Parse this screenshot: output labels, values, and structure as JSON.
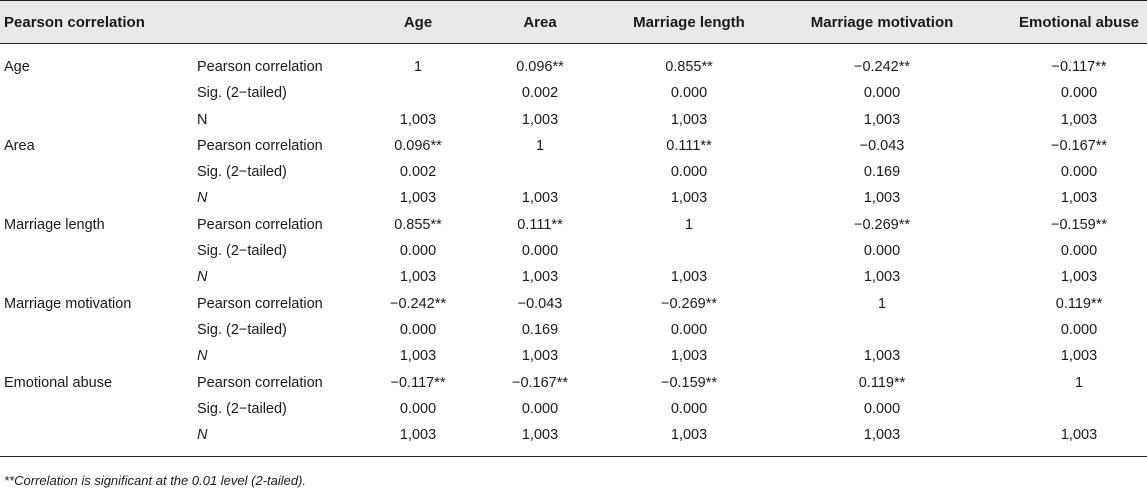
{
  "table": {
    "columns": [
      "Pearson correlation",
      "Age",
      "Area",
      "Marriage length",
      "Marriage motivation",
      "Emotional abuse"
    ],
    "blocks": [
      {
        "label": "Age",
        "rows": [
          {
            "stat": "Pearson correlation",
            "italic": false,
            "values": [
              "1",
              "0.096**",
              "0.855**",
              "−0.242**",
              "−0.117**"
            ]
          },
          {
            "stat": "Sig. (2−tailed)",
            "italic": false,
            "values": [
              "",
              "0.002",
              "0.000",
              "0.000",
              "0.000"
            ]
          },
          {
            "stat": "N",
            "italic": false,
            "values": [
              "1,003",
              "1,003",
              "1,003",
              "1,003",
              "1,003"
            ]
          }
        ]
      },
      {
        "label": "Area",
        "rows": [
          {
            "stat": "Pearson correlation",
            "italic": false,
            "values": [
              "0.096**",
              "1",
              "0.111**",
              "−0.043",
              "−0.167**"
            ]
          },
          {
            "stat": "Sig. (2−tailed)",
            "italic": false,
            "values": [
              "0.002",
              "",
              "0.000",
              "0.169",
              "0.000"
            ]
          },
          {
            "stat": "N",
            "italic": true,
            "values": [
              "1,003",
              "1,003",
              "1,003",
              "1,003",
              "1,003"
            ]
          }
        ]
      },
      {
        "label": "Marriage length",
        "rows": [
          {
            "stat": "Pearson correlation",
            "italic": false,
            "values": [
              "0.855**",
              "0.111**",
              "1",
              "−0.269**",
              "−0.159**"
            ]
          },
          {
            "stat": "Sig. (2−tailed)",
            "italic": false,
            "values": [
              "0.000",
              "0.000",
              "",
              "0.000",
              "0.000"
            ]
          },
          {
            "stat": "N",
            "italic": true,
            "values": [
              "1,003",
              "1,003",
              "1,003",
              "1,003",
              "1,003"
            ]
          }
        ]
      },
      {
        "label": "Marriage motivation",
        "rows": [
          {
            "stat": "Pearson correlation",
            "italic": false,
            "values": [
              "−0.242**",
              "−0.043",
              "−0.269**",
              "1",
              "0.119**"
            ]
          },
          {
            "stat": "Sig. (2−tailed)",
            "italic": false,
            "values": [
              "0.000",
              "0.169",
              "0.000",
              "",
              "0.000"
            ]
          },
          {
            "stat": "N",
            "italic": true,
            "values": [
              "1,003",
              "1,003",
              "1,003",
              "1,003",
              "1,003"
            ]
          }
        ]
      },
      {
        "label": "Emotional abuse",
        "rows": [
          {
            "stat": "Pearson correlation",
            "italic": false,
            "values": [
              "−0.117**",
              "−0.167**",
              "−0.159**",
              "0.119**",
              "1"
            ]
          },
          {
            "stat": "Sig. (2−tailed)",
            "italic": false,
            "values": [
              "0.000",
              "0.000",
              "0.000",
              "0.000",
              ""
            ]
          },
          {
            "stat": "N",
            "italic": true,
            "values": [
              "1,003",
              "1,003",
              "1,003",
              "1,003",
              "1,003"
            ]
          }
        ]
      }
    ],
    "footnote": "**Correlation is significant at the 0.01 level (2-tailed)."
  }
}
